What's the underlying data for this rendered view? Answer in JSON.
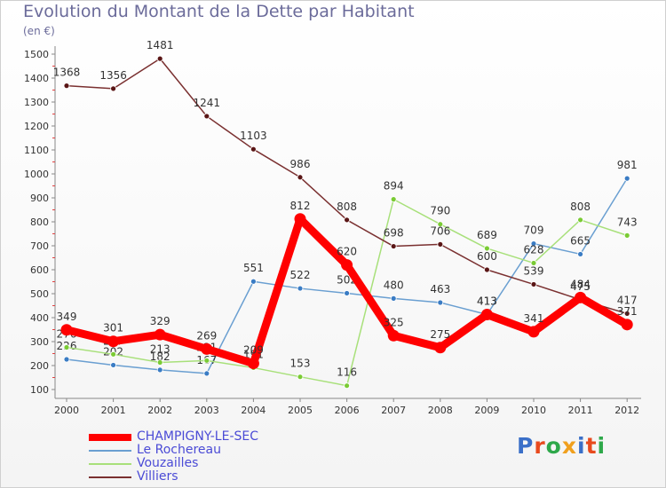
{
  "title": "Evolution du Montant de la Dette par Habitant",
  "unit_label": "(en €)",
  "logo": {
    "text": "Proxiti",
    "colors": [
      "#3a6fc8",
      "#e84a1e",
      "#2ea84a",
      "#f0a01e",
      "#3a6fc8",
      "#e84a1e",
      "#2ea84a"
    ]
  },
  "chart_data": {
    "type": "line",
    "x": [
      "2000",
      "2001",
      "2002",
      "2003",
      "2004",
      "2005",
      "2006",
      "2007",
      "2008",
      "2009",
      "2010",
      "2011",
      "2012"
    ],
    "ylim": [
      100,
      1500
    ],
    "yticks": [
      100,
      200,
      300,
      400,
      500,
      600,
      700,
      800,
      900,
      1000,
      1100,
      1200,
      1300,
      1400,
      1500
    ],
    "grid": false,
    "legend_position": "bottom-left",
    "series": [
      {
        "name": "Le Rochereau",
        "color": "#6a9fd1",
        "marker": "#3a7cc4",
        "values": [
          226,
          202,
          182,
          167,
          551,
          522,
          502,
          480,
          463,
          413,
          709,
          665,
          981
        ],
        "labels": [
          "226",
          "202",
          "182",
          "167",
          "551",
          "522",
          "502",
          "480",
          "463",
          "413",
          "709",
          "665",
          "981"
        ]
      },
      {
        "name": "Vouzailles",
        "color": "#a8e07a",
        "marker": "#7acb34",
        "values": [
          276,
          247,
          213,
          221,
          191,
          153,
          116,
          894,
          790,
          689,
          628,
          808,
          743
        ],
        "labels": [
          "276",
          "247",
          "213",
          "221",
          "191",
          "153",
          "116",
          "894",
          "790",
          "689",
          "628",
          "808",
          "743"
        ]
      },
      {
        "name": "Villiers",
        "color": "#7a3030",
        "marker": "#5a1616",
        "values": [
          1368,
          1356,
          1481,
          1241,
          1103,
          986,
          808,
          698,
          706,
          600,
          539,
          475,
          417
        ],
        "labels": [
          "1368",
          "1356",
          "1481",
          "1241",
          "1103",
          "986",
          "808",
          "698",
          "706",
          "600",
          "539",
          "475",
          "417"
        ]
      },
      {
        "name": "CHAMPIGNY-LE-SEC",
        "color": "#ff0000",
        "marker": "#ff0000",
        "values": [
          349,
          301,
          329,
          269,
          209,
          812,
          620,
          325,
          275,
          413,
          341,
          484,
          371
        ],
        "labels": [
          "349",
          "301",
          "329",
          "269",
          "209",
          "812",
          "620",
          "325",
          "275",
          "413",
          "341",
          "484",
          "371"
        ]
      }
    ],
    "legend": [
      "CHAMPIGNY-LE-SEC",
      "Le Rochereau",
      "Vouzailles",
      "Villiers"
    ]
  }
}
